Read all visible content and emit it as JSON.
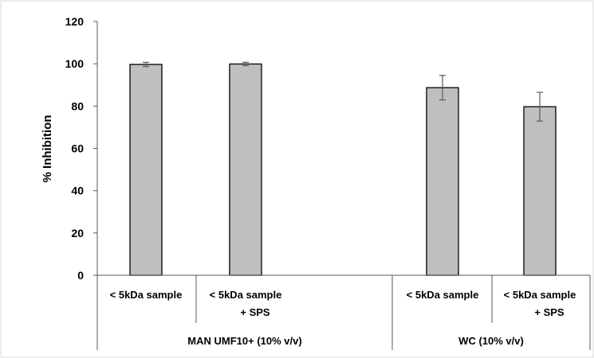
{
  "chart_data": {
    "type": "bar",
    "ylabel": "% Inhibition",
    "xlabel": "",
    "ylim": [
      0,
      120
    ],
    "yticks": [
      "0",
      "20",
      "40",
      "60",
      "80",
      "100",
      "120"
    ],
    "grid": false,
    "legend": "none",
    "bar_color": "#bfbfbf",
    "groups": [
      {
        "label": "MAN UMF10+ (10% v/v)",
        "bars": [
          {
            "label": [
              "< 5kDa sample",
              ""
            ],
            "value": 99.7,
            "error": 1.0
          },
          {
            "label": [
              "< 5kDa sample",
              "+ SPS"
            ],
            "value": 99.9,
            "error": 0.8
          }
        ]
      },
      {
        "label": "WC (10% v/v)",
        "bars": [
          {
            "label": [
              "< 5kDa sample",
              ""
            ],
            "value": 88.7,
            "error": 5.8
          },
          {
            "label": [
              "< 5kDa sample",
              "+ SPS"
            ],
            "value": 79.7,
            "error": 6.8
          }
        ]
      }
    ]
  }
}
